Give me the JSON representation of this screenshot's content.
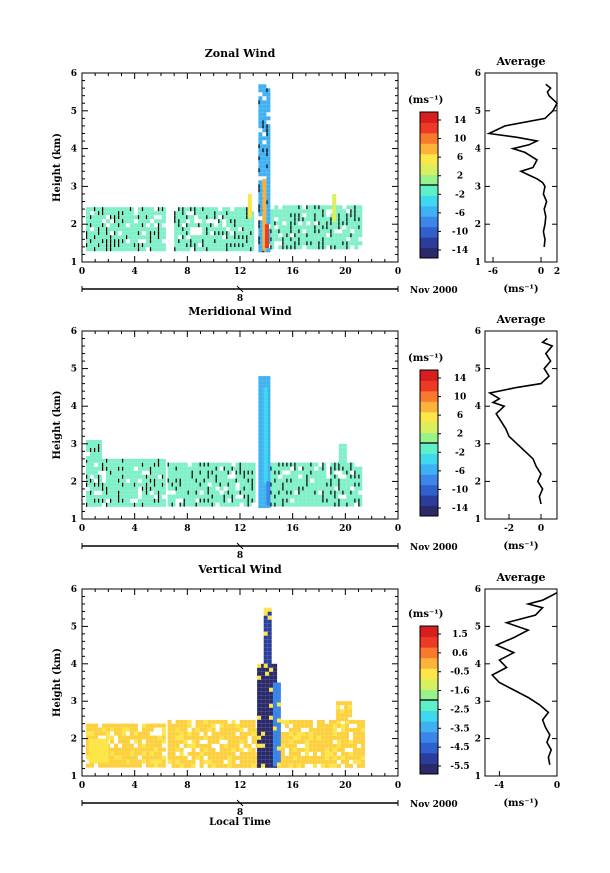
{
  "chart_data": [
    {
      "type": "heatmap",
      "title": "Zonal Wind",
      "ylabel": "Height (km)",
      "xlabel": "",
      "xticks": [
        "0",
        "4",
        "8",
        "12",
        "16",
        "20",
        "0"
      ],
      "yticks": [
        "1",
        "2",
        "3",
        "4",
        "5",
        "6"
      ],
      "xlim": [
        0,
        24
      ],
      "ylim": [
        1,
        6
      ],
      "date_marker": "8",
      "date_label": "Nov 2000",
      "colorbar": {
        "unit": "(ms⁻¹)",
        "ticks": [
          "14",
          "10",
          "6",
          "2",
          "-2",
          "-6",
          "-10",
          "-14"
        ],
        "colors": [
          "#2a2a6a",
          "#2b3d9a",
          "#2f60cc",
          "#3b86e8",
          "#3fb0f2",
          "#3fd8ee",
          "#5ff0c8",
          "#9af28c",
          "#d8f060",
          "#fde64a",
          "#fdb23a",
          "#f97a2e",
          "#ee3a25",
          "#d81f1f"
        ],
        "range": [
          -16,
          16
        ]
      },
      "field": {
        "background_color": "#7ff0c8",
        "regions": [
          {
            "x": [
              0.3,
              6.2
            ],
            "y": [
              1.35,
              2.45
            ],
            "color": "#7ff0c8"
          },
          {
            "x": [
              7.0,
              13.0
            ],
            "y": [
              1.35,
              2.45
            ],
            "color": "#7ff0c8"
          },
          {
            "x": [
              14.3,
              21.2
            ],
            "y": [
              1.35,
              2.5
            ],
            "color": "#7ff0c8"
          },
          {
            "x": [
              13.4,
              14.3
            ],
            "y": [
              1.35,
              5.7
            ],
            "color": "#3fb0f2"
          },
          {
            "x": [
              13.7,
              14.0
            ],
            "y": [
              1.4,
              3.2
            ],
            "color": "#fdb23a"
          },
          {
            "x": [
              13.9,
              14.1
            ],
            "y": [
              1.4,
              2.0
            ],
            "color": "#ee3a25"
          },
          {
            "x": [
              19.0,
              19.3
            ],
            "y": [
              2.1,
              2.8
            ],
            "color": "#d8f060"
          },
          {
            "x": [
              12.6,
              12.9
            ],
            "y": [
              2.2,
              2.8
            ],
            "color": "#fde64a"
          }
        ]
      },
      "average": {
        "title": "Average",
        "xlabel": "(ms⁻¹)",
        "xticks": [
          "-6",
          "0",
          "2"
        ],
        "xlim": [
          -7,
          2
        ],
        "ylim": [
          1,
          6
        ],
        "yticks": [
          "1",
          "2",
          "3",
          "4",
          "5",
          "6"
        ],
        "x": [
          0.4,
          0.5,
          0.3,
          0.5,
          0.6,
          0.4,
          0.7,
          0.3,
          0.5,
          0.2,
          -0.5,
          -1.5,
          -2.5,
          -1.0,
          -0.5,
          -2.0,
          -3.5,
          -1.5,
          -0.5,
          -3.0,
          -6.5,
          -4.5,
          0.5,
          1.5,
          2.0,
          1.0,
          0.8,
          1.2,
          0.6
        ],
        "y": [
          1.4,
          1.6,
          1.8,
          2.0,
          2.2,
          2.4,
          2.6,
          2.8,
          3.0,
          3.1,
          3.2,
          3.3,
          3.4,
          3.5,
          3.7,
          3.9,
          4.0,
          4.1,
          4.2,
          4.3,
          4.4,
          4.6,
          4.8,
          5.0,
          5.2,
          5.4,
          5.5,
          5.6,
          5.7
        ]
      }
    },
    {
      "type": "heatmap",
      "title": "Meridional Wind",
      "ylabel": "Height (km)",
      "xlabel": "",
      "xticks": [
        "0",
        "4",
        "8",
        "12",
        "16",
        "20",
        "0"
      ],
      "yticks": [
        "1",
        "2",
        "3",
        "4",
        "5",
        "6"
      ],
      "xlim": [
        0,
        24
      ],
      "ylim": [
        1,
        6
      ],
      "date_marker": "8",
      "date_label": "Nov 2000",
      "colorbar": {
        "unit": "(ms⁻¹)",
        "ticks": [
          "14",
          "10",
          "6",
          "2",
          "-2",
          "-6",
          "-10",
          "-14"
        ],
        "colors": [
          "#2a2a6a",
          "#2b3d9a",
          "#2f60cc",
          "#3b86e8",
          "#3fb0f2",
          "#3fd8ee",
          "#5ff0c8",
          "#9af28c",
          "#d8f060",
          "#fde64a",
          "#fdb23a",
          "#f97a2e",
          "#ee3a25",
          "#d81f1f"
        ],
        "range": [
          -16,
          16
        ]
      },
      "field": {
        "background_color": "#7ff0c8",
        "regions": [
          {
            "x": [
              0.3,
              6.2
            ],
            "y": [
              1.35,
              2.6
            ],
            "color": "#7ff0c8"
          },
          {
            "x": [
              0.3,
              1.5
            ],
            "y": [
              2.6,
              3.1
            ],
            "color": "#7ff0c8"
          },
          {
            "x": [
              6.5,
              13.0
            ],
            "y": [
              1.35,
              2.5
            ],
            "color": "#7ff0c8"
          },
          {
            "x": [
              14.3,
              21.2
            ],
            "y": [
              1.35,
              2.5
            ],
            "color": "#7ff0c8"
          },
          {
            "x": [
              19.5,
              20.0
            ],
            "y": [
              2.5,
              3.0
            ],
            "color": "#7ff0c8"
          },
          {
            "x": [
              13.4,
              14.3
            ],
            "y": [
              1.35,
              4.8
            ],
            "color": "#3fb0f2"
          },
          {
            "x": [
              13.8,
              14.1
            ],
            "y": [
              2.0,
              4.5
            ],
            "color": "#3fd8ee"
          },
          {
            "x": [
              14.0,
              14.3
            ],
            "y": [
              1.4,
              2.0
            ],
            "color": "#3b86e8"
          }
        ]
      },
      "average": {
        "title": "Average",
        "xlabel": "(ms⁻¹)",
        "xticks": [
          "-2",
          "0"
        ],
        "xlim": [
          -3.5,
          1
        ],
        "ylim": [
          1,
          6
        ],
        "yticks": [
          "1",
          "2",
          "3",
          "4",
          "5",
          "6"
        ],
        "x": [
          0.0,
          -0.1,
          0.1,
          -0.2,
          0.0,
          -0.3,
          -0.5,
          -1.0,
          -1.5,
          -2.0,
          -2.2,
          -2.5,
          -2.8,
          -2.3,
          -3.0,
          -2.6,
          -3.2,
          -1.5,
          0.0,
          0.5,
          0.2,
          0.6,
          0.3,
          0.7,
          0.1,
          0.4
        ],
        "y": [
          1.4,
          1.6,
          1.8,
          2.0,
          2.2,
          2.4,
          2.6,
          2.8,
          3.0,
          3.2,
          3.4,
          3.6,
          3.8,
          4.0,
          4.1,
          4.2,
          4.35,
          4.5,
          4.6,
          4.8,
          5.0,
          5.2,
          5.4,
          5.6,
          5.7,
          5.8
        ]
      }
    },
    {
      "type": "heatmap",
      "title": "Vertical Wind",
      "ylabel": "Height (km)",
      "xlabel": "Local Time",
      "xticks": [
        "0",
        "4",
        "8",
        "12",
        "16",
        "20",
        "0"
      ],
      "yticks": [
        "1",
        "2",
        "3",
        "4",
        "5",
        "6"
      ],
      "xlim": [
        0,
        24
      ],
      "ylim": [
        1,
        6
      ],
      "date_marker": "8",
      "date_label": "Nov 2000",
      "colorbar": {
        "unit": "(ms⁻¹)",
        "ticks": [
          "1.5",
          "0.6",
          "-0.5",
          "-1.6",
          "-2.5",
          "-3.5",
          "-4.5",
          "-5.5"
        ],
        "colors": [
          "#2a2a6a",
          "#2b3d9a",
          "#2f60cc",
          "#3b86e8",
          "#3fb0f2",
          "#3fd8ee",
          "#5ff0c8",
          "#9af28c",
          "#d8f060",
          "#fde64a",
          "#fdb23a",
          "#f97a2e",
          "#ee3a25",
          "#d81f1f"
        ],
        "range": [
          -6,
          2
        ]
      },
      "field": {
        "background_color": "#fdd040",
        "regions": [
          {
            "x": [
              0.3,
              6.2
            ],
            "y": [
              1.3,
              2.4
            ],
            "color": "#fdd040"
          },
          {
            "x": [
              6.5,
              13.2
            ],
            "y": [
              1.3,
              2.5
            ],
            "color": "#fdd040"
          },
          {
            "x": [
              14.5,
              21.2
            ],
            "y": [
              1.3,
              2.5
            ],
            "color": "#fdd040"
          },
          {
            "x": [
              19.3,
              20.5
            ],
            "y": [
              2.5,
              3.0
            ],
            "color": "#fdd040"
          },
          {
            "x": [
              0.5,
              2.0
            ],
            "y": [
              1.4,
              2.0
            ],
            "color": "#fde64a"
          },
          {
            "x": [
              13.3,
              14.7
            ],
            "y": [
              1.3,
              4.0
            ],
            "color": "#2a2a6a"
          },
          {
            "x": [
              13.8,
              14.3
            ],
            "y": [
              4.0,
              5.5
            ],
            "color": "#2b3d9a"
          },
          {
            "x": [
              14.5,
              14.9
            ],
            "y": [
              1.3,
              3.5
            ],
            "color": "#3b86e8"
          }
        ]
      },
      "average": {
        "title": "Average",
        "xlabel": "(ms⁻¹)",
        "xticks": [
          "-4",
          "0"
        ],
        "xlim": [
          -5,
          0
        ],
        "ylim": [
          1,
          6
        ],
        "yticks": [
          "1",
          "2",
          "3",
          "4",
          "5",
          "6"
        ],
        "x": [
          -0.5,
          -0.6,
          -0.4,
          -0.7,
          -0.5,
          -0.8,
          -1.0,
          -0.6,
          -1.2,
          -2.0,
          -3.0,
          -4.0,
          -4.5,
          -3.5,
          -4.0,
          -3.0,
          -4.2,
          -3.0,
          -2.0,
          -3.5,
          -1.5,
          -1.0,
          -2.0,
          -1.0,
          -0.5,
          0.0
        ],
        "y": [
          1.3,
          1.5,
          1.7,
          1.9,
          2.1,
          2.3,
          2.5,
          2.7,
          2.9,
          3.1,
          3.3,
          3.5,
          3.7,
          3.9,
          4.1,
          4.3,
          4.5,
          4.7,
          4.9,
          5.1,
          5.3,
          5.5,
          5.6,
          5.7,
          5.8,
          5.9
        ]
      }
    }
  ]
}
